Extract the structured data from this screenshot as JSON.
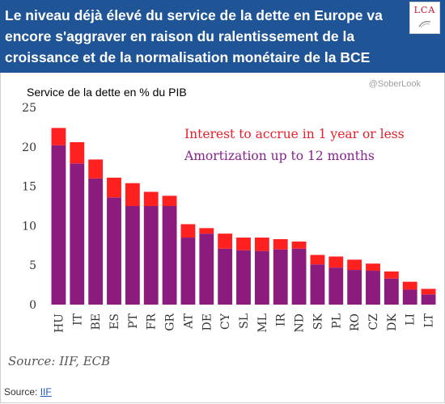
{
  "header": {
    "title": "Le niveau déjà élevé du service de la dette en Europe va encore s'aggraver en raison du ralentissement de la croissance et de la normalisation monétaire de la BCE",
    "logo_text": "LCA"
  },
  "footer": {
    "label": "Source:",
    "link_text": "IIF"
  },
  "colors": {
    "header_bg": "#1f5597",
    "amortization": "#8b1c7d",
    "interest": "#ff2020",
    "legend_interest": "#e8202b",
    "legend_amortization": "#86228c"
  },
  "chart_data": {
    "type": "bar",
    "stacked": true,
    "title": "Service de la dette en % du PIB",
    "watermark": "@SoberLook",
    "source": "Source: IIF, ECB",
    "categories": [
      "HU",
      "IT",
      "BE",
      "ES",
      "PT",
      "FR",
      "GR",
      "AT",
      "DE",
      "CY",
      "SL",
      "ML",
      "IR",
      "ND",
      "SK",
      "PL",
      "RO",
      "CZ",
      "DK",
      "LI",
      "LT"
    ],
    "series": [
      {
        "name": "Amortization up to 12 months",
        "values": [
          20.2,
          17.9,
          16.0,
          13.6,
          12.5,
          12.5,
          12.5,
          8.5,
          9.0,
          7.1,
          6.9,
          6.8,
          7.0,
          7.1,
          5.1,
          4.7,
          4.4,
          4.3,
          3.3,
          1.9,
          1.3
        ]
      },
      {
        "name": "Interest to accrue in 1 year or less",
        "values": [
          2.2,
          2.7,
          2.4,
          2.5,
          2.9,
          1.8,
          1.3,
          1.7,
          0.7,
          1.9,
          1.6,
          1.7,
          1.3,
          0.9,
          1.2,
          1.4,
          1.3,
          0.9,
          0.9,
          1.0,
          0.7
        ]
      }
    ],
    "yticks": [
      "0",
      "5",
      "10",
      "15",
      "20",
      "25"
    ],
    "ylim": [
      0,
      25
    ],
    "grid": false,
    "legend": "top-right"
  }
}
